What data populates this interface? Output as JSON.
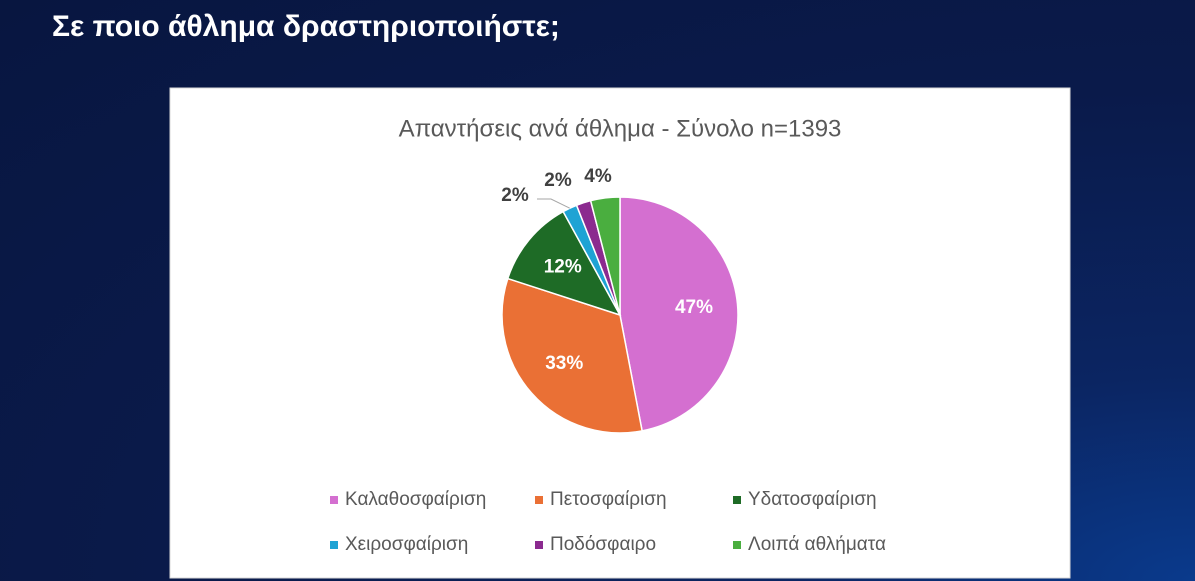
{
  "slide_title": "Σε ποιο άθλημα δραστηριοποιήστε;",
  "chart_data": {
    "type": "pie",
    "title": "Απαντήσεις ανά άθλημα - Σύνολο n=1393",
    "categories": [
      "Καλαθοσφαίριση",
      "Πετοσφαίριση",
      "Υδατοσφαίριση",
      "Χειροσφαίριση",
      "Ποδόσφαιρο",
      "Λοιπά αθλήματα"
    ],
    "values": [
      47,
      33,
      12,
      2,
      2,
      4
    ],
    "value_labels": [
      "47%",
      "33%",
      "12%",
      "2%",
      "2%",
      "4%"
    ],
    "colors": [
      "#d46fd0",
      "#ea7035",
      "#1e6b26",
      "#1fa3d4",
      "#8b2a8f",
      "#4aae3f"
    ],
    "legend": "bottom"
  }
}
